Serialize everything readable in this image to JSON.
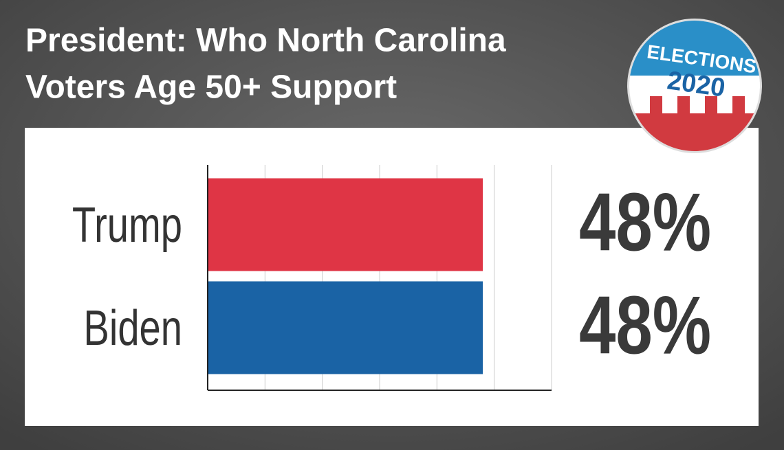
{
  "chart_data": {
    "type": "hbar",
    "title": [
      "President: Who North Carolina",
      "Voters Age 50+ Support"
    ],
    "categories": [
      "Trump",
      "Biden"
    ],
    "values": [
      48,
      48
    ],
    "value_labels": [
      "48%",
      "48%"
    ],
    "colors": [
      "#df3545",
      "#1a63a5"
    ],
    "xlim": [
      0,
      60
    ],
    "xticks": [
      0,
      10,
      20,
      30,
      40,
      50,
      60
    ],
    "grid": true
  },
  "badge": {
    "line1": "ELECTIONS",
    "line2": "2020"
  }
}
